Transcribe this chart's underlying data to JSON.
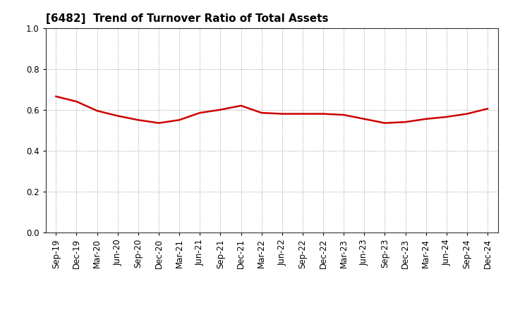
{
  "title": "[6482]  Trend of Turnover Ratio of Total Assets",
  "labels": [
    "Sep-19",
    "Dec-19",
    "Mar-20",
    "Jun-20",
    "Sep-20",
    "Dec-20",
    "Mar-21",
    "Jun-21",
    "Sep-21",
    "Dec-21",
    "Mar-22",
    "Jun-22",
    "Sep-22",
    "Dec-22",
    "Mar-23",
    "Jun-23",
    "Sep-23",
    "Dec-23",
    "Mar-24",
    "Jun-24",
    "Sep-24",
    "Dec-24"
  ],
  "values": [
    0.665,
    0.64,
    0.595,
    0.57,
    0.55,
    0.535,
    0.55,
    0.585,
    0.6,
    0.62,
    0.585,
    0.58,
    0.58,
    0.58,
    0.575,
    0.555,
    0.535,
    0.54,
    0.555,
    0.565,
    0.58,
    0.605
  ],
  "line_color": "#cc0000",
  "line_width": 1.8,
  "ylim": [
    0.0,
    1.0
  ],
  "yticks": [
    0.0,
    0.2,
    0.4,
    0.6,
    0.8,
    1.0
  ],
  "grid_color": "#999999",
  "bg_color": "#ffffff",
  "title_fontsize": 11,
  "tick_fontsize": 8.5
}
